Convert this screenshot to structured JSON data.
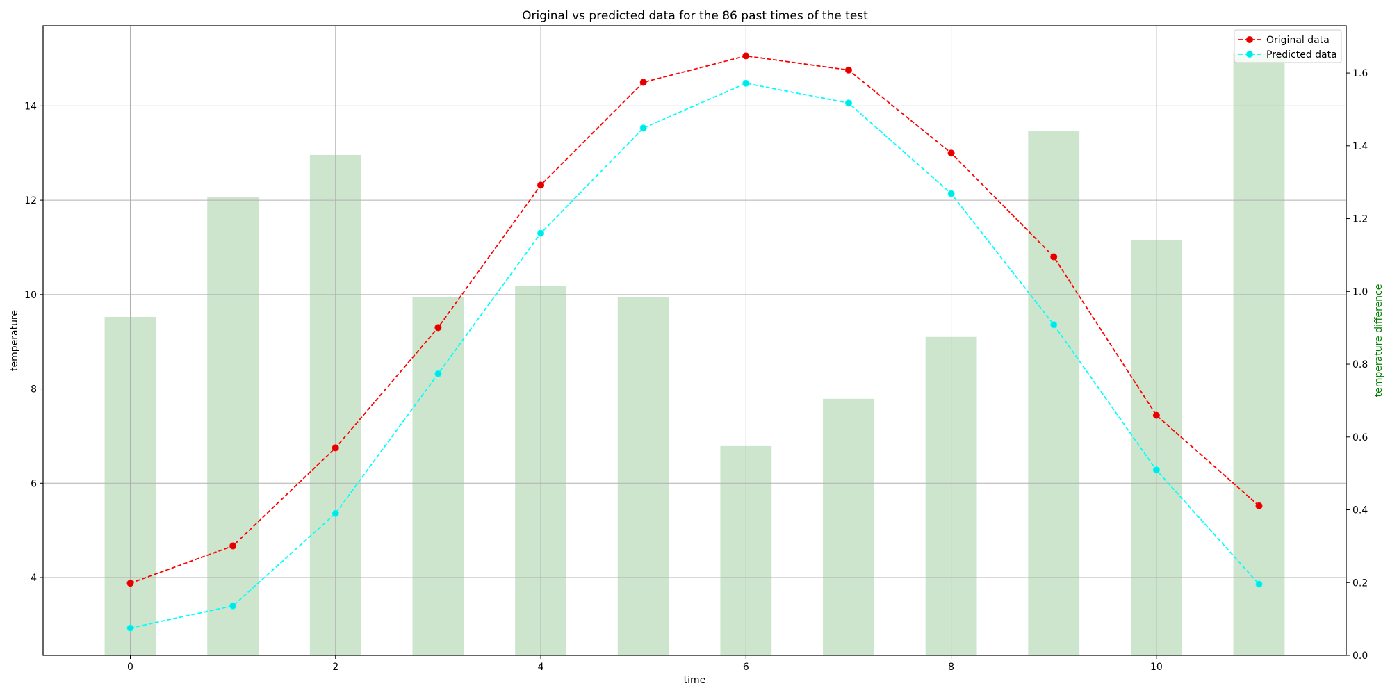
{
  "chart_data": {
    "type": "line",
    "title": "Original vs predicted data for the 86 past times of the test",
    "xlabel": "time",
    "ylabel": "temperature",
    "y2label": "temperature difference",
    "xlim": [
      -0.85,
      11.85
    ],
    "ylim": [
      2.35,
      15.7
    ],
    "y2lim": [
      0.0,
      1.73
    ],
    "x_ticks": [
      0,
      2,
      4,
      6,
      8,
      10
    ],
    "y_ticks": [
      4,
      6,
      8,
      10,
      12,
      14
    ],
    "y2_ticks": [
      0.0,
      0.2,
      0.4,
      0.6,
      0.8,
      1.0,
      1.2,
      1.4,
      1.6
    ],
    "grid": true,
    "legend_position": "top-right",
    "x": [
      0,
      1,
      2,
      3,
      4,
      5,
      6,
      7,
      8,
      9,
      10,
      11
    ],
    "series": [
      {
        "name": "Original data",
        "color": "#ff0000",
        "marker_color": "#e00000",
        "style": "dashed-circle",
        "values": [
          3.88,
          4.67,
          6.75,
          9.3,
          12.32,
          14.5,
          15.06,
          14.76,
          13.0,
          10.8,
          7.44,
          5.52
        ]
      },
      {
        "name": "Predicted data",
        "color": "#00ffff",
        "marker_color": "#00e5e5",
        "style": "dashed-circle",
        "values": [
          2.93,
          3.4,
          5.36,
          8.32,
          11.3,
          13.53,
          14.48,
          14.06,
          12.14,
          9.36,
          6.28,
          3.86
        ]
      }
    ],
    "bars": {
      "axis": "right",
      "color": "#cde5cd",
      "values": [
        0.93,
        1.26,
        1.375,
        0.985,
        1.015,
        0.985,
        0.575,
        0.705,
        0.875,
        1.44,
        1.14,
        1.655
      ]
    }
  }
}
